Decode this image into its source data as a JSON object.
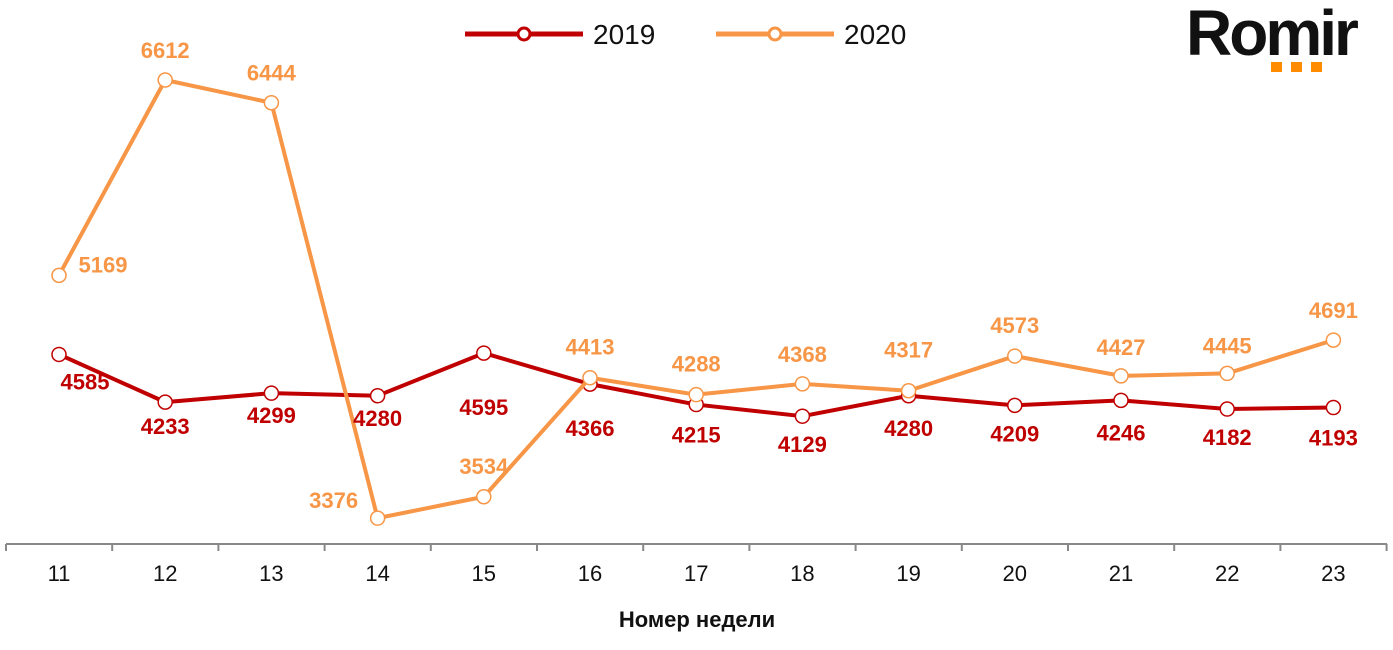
{
  "logo": {
    "text": "Romir",
    "dot_color": "#FF8C00"
  },
  "chart_data": {
    "type": "line",
    "title": "",
    "xlabel": "Номер недели",
    "ylabel": "",
    "categories": [
      "11",
      "12",
      "13",
      "14",
      "15",
      "16",
      "17",
      "18",
      "19",
      "20",
      "21",
      "22",
      "23"
    ],
    "grid": false,
    "y_axis_visible": false,
    "legend_position": "top",
    "series": [
      {
        "name": "2019",
        "color": "#C00000",
        "values": [
          4585,
          4233,
          4299,
          4280,
          4595,
          4366,
          4215,
          4129,
          4280,
          4209,
          4246,
          4182,
          4193
        ]
      },
      {
        "name": "2020",
        "color": "#F79646",
        "values": [
          5169,
          6612,
          6444,
          3376,
          3534,
          4413,
          4288,
          4368,
          4317,
          4573,
          4427,
          4445,
          4691
        ]
      }
    ]
  }
}
